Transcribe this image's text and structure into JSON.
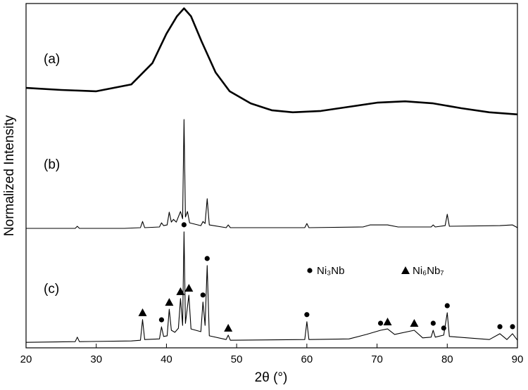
{
  "chart_data": {
    "type": "line",
    "x_label": "2θ (°)",
    "y_label": "Normalized Intensity",
    "xlim": [
      20,
      90
    ],
    "xticks": [
      20,
      30,
      40,
      50,
      60,
      70,
      80,
      90
    ],
    "ylim": [
      0,
      100
    ],
    "series": [
      {
        "name": "(a)",
        "color": "#000000",
        "x": [
          20,
          25,
          30,
          35,
          38,
          40,
          41.5,
          42.5,
          43.5,
          45,
          47,
          49,
          52,
          55,
          58,
          62,
          66,
          70,
          74,
          78,
          82,
          86,
          90
        ],
        "values": [
          75.5,
          74.9,
          74.5,
          76.5,
          82.7,
          91.2,
          96.3,
          98.6,
          96.3,
          89.0,
          80.0,
          74.5,
          71.0,
          69.0,
          68.4,
          68.8,
          70.0,
          71.2,
          71.6,
          71.0,
          69.6,
          68.4,
          67.8
        ]
      },
      {
        "name": "(b)",
        "color": "#000000",
        "x": [
          20,
          27,
          27.3,
          27.6,
          34,
          36.3,
          36.6,
          36.9,
          39,
          39.3,
          39.6,
          40.1,
          40.4,
          40.7,
          41,
          41.4,
          42,
          42.3,
          42.5,
          42.7,
          43,
          43.3,
          44.9,
          45.2,
          45.5,
          45.8,
          46.1,
          48.5,
          48.8,
          49.1,
          59.7,
          60,
          60.3,
          68,
          69,
          71.5,
          73,
          77.7,
          78,
          78.3,
          79.7,
          80,
          80.3,
          87.5,
          89.3,
          90
        ],
        "values": [
          34.7,
          34.7,
          35.3,
          34.7,
          34.7,
          34.9,
          36.7,
          34.9,
          35.1,
          36.3,
          35.5,
          35.7,
          39.4,
          36.5,
          37.3,
          36.5,
          39.6,
          37.5,
          66.3,
          38.0,
          39.6,
          36.3,
          35.5,
          36.7,
          36.1,
          43.3,
          35.7,
          34.9,
          35.7,
          34.9,
          34.9,
          36.1,
          34.9,
          35.1,
          35.7,
          35.7,
          35.1,
          35.1,
          35.7,
          35.1,
          35.5,
          38.8,
          35.3,
          35.5,
          35.7,
          34.9
        ]
      },
      {
        "name": "(c)",
        "color": "#000000",
        "x": [
          20,
          27,
          27.3,
          27.6,
          35,
          36.3,
          36.6,
          36.9,
          39,
          39.3,
          39.6,
          40.1,
          40.4,
          40.7,
          41.2,
          41.7,
          42,
          42.3,
          42.5,
          42.7,
          43.2,
          43.5,
          44.9,
          45.2,
          45.5,
          45.8,
          46.1,
          48.5,
          48.8,
          49.1,
          59.7,
          60,
          60.3,
          66,
          68.5,
          70.5,
          71.5,
          72.5,
          75.3,
          76.5,
          77.7,
          78,
          78.3,
          79.5,
          80,
          80.3,
          86,
          87.5,
          88.5,
          89.3,
          90
        ],
        "values": [
          1.6,
          1.8,
          3.1,
          1.8,
          2.0,
          2.2,
          8.2,
          2.4,
          2.6,
          6.1,
          3.3,
          3.5,
          11.2,
          5.1,
          4.5,
          5.7,
          14.3,
          6.5,
          33.7,
          7.1,
          15.3,
          5.5,
          4.7,
          13.3,
          6.5,
          23.9,
          3.5,
          2.4,
          3.7,
          2.2,
          2.4,
          7.6,
          2.4,
          2.6,
          3.9,
          5.1,
          5.5,
          3.9,
          5.1,
          2.9,
          3.1,
          5.1,
          3.1,
          3.7,
          10.2,
          3.3,
          2.4,
          4.1,
          2.4,
          4.1,
          2.2
        ]
      }
    ],
    "phases": [
      {
        "name": "Ni₃Nb",
        "symbol": "circle",
        "x": [
          39.3,
          42.5,
          45.2,
          45.8,
          60,
          70.5,
          78,
          79.5,
          80,
          87.5,
          89.3
        ]
      },
      {
        "name": "Ni₆Nb₇",
        "symbol": "triangle",
        "x": [
          36.6,
          40.4,
          42,
          43.2,
          48.8,
          71.5,
          75.3
        ]
      }
    ]
  }
}
